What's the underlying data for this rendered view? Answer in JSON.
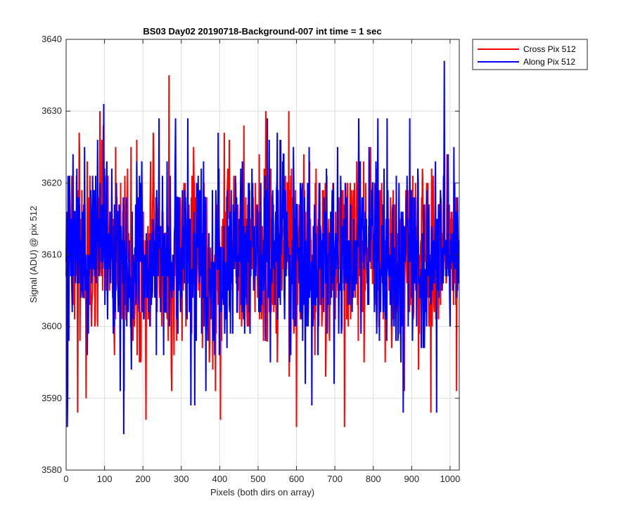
{
  "chart_data": {
    "type": "line",
    "title": "BS03 Day02 20190718-Background-007 int time = 1 sec",
    "xlabel": "Pixels (both dirs on array)",
    "ylabel": "Signal (ADU) @ pix 512",
    "xlim": [
      0,
      1024
    ],
    "ylim": [
      3580,
      3640
    ],
    "xticks": [
      0,
      100,
      200,
      300,
      400,
      500,
      600,
      700,
      800,
      900,
      1000
    ],
    "yticks": [
      3580,
      3590,
      3600,
      3610,
      3620,
      3630,
      3640
    ],
    "grid": true,
    "legend_position": "outside-top-right",
    "series": [
      {
        "name": "Cross Pix 512",
        "color": "#ff0000",
        "x": [
          0,
          32,
          64,
          96,
          128,
          160,
          192,
          224,
          256,
          288,
          320,
          352,
          384,
          416,
          448,
          480,
          512,
          544,
          576,
          608,
          640,
          672,
          704,
          736,
          768,
          800,
          832,
          864,
          896,
          928,
          960,
          992,
          1023
        ],
        "y": [
          3610,
          3612,
          3606,
          3615,
          3608,
          3611,
          3604,
          3613,
          3609,
          3607,
          3612,
          3610,
          3605,
          3614,
          3608,
          3611,
          3609,
          3606,
          3612,
          3610,
          3608,
          3613,
          3607,
          3611,
          3609,
          3612,
          3606,
          3610,
          3608,
          3611,
          3607,
          3612,
          3609
        ],
        "peaks": [
          {
            "x": 268,
            "y": 3635
          },
          {
            "x": 88,
            "y": 3630
          },
          {
            "x": 600,
            "y": 3586
          },
          {
            "x": 725,
            "y": 3586
          },
          {
            "x": 208,
            "y": 3587
          },
          {
            "x": 402,
            "y": 3587
          },
          {
            "x": 30,
            "y": 3588
          },
          {
            "x": 950,
            "y": 3588
          },
          {
            "x": 52,
            "y": 3590
          },
          {
            "x": 520,
            "y": 3630
          },
          {
            "x": 580,
            "y": 3630
          },
          {
            "x": 463,
            "y": 3628
          }
        ]
      },
      {
        "name": "Along Pix 512",
        "color": "#0000ff",
        "x": [
          0,
          32,
          64,
          96,
          128,
          160,
          192,
          224,
          256,
          288,
          320,
          352,
          384,
          416,
          448,
          480,
          512,
          544,
          576,
          608,
          640,
          672,
          704,
          736,
          768,
          800,
          832,
          864,
          896,
          928,
          960,
          992,
          1023
        ],
        "y": [
          3609,
          3611,
          3608,
          3612,
          3610,
          3607,
          3611,
          3609,
          3612,
          3608,
          3610,
          3611,
          3607,
          3610,
          3609,
          3612,
          3608,
          3611,
          3610,
          3609,
          3608,
          3611,
          3610,
          3607,
          3612,
          3609,
          3610,
          3608,
          3611,
          3609,
          3610,
          3612,
          3610
        ],
        "peaks": [
          {
            "x": 985,
            "y": 3637
          },
          {
            "x": 98,
            "y": 3631
          },
          {
            "x": 812,
            "y": 3629
          },
          {
            "x": 150,
            "y": 3585
          },
          {
            "x": 3,
            "y": 3586
          },
          {
            "x": 325,
            "y": 3589
          },
          {
            "x": 335,
            "y": 3589
          },
          {
            "x": 878,
            "y": 3588
          },
          {
            "x": 965,
            "y": 3588
          },
          {
            "x": 640,
            "y": 3589
          }
        ]
      }
    ]
  }
}
